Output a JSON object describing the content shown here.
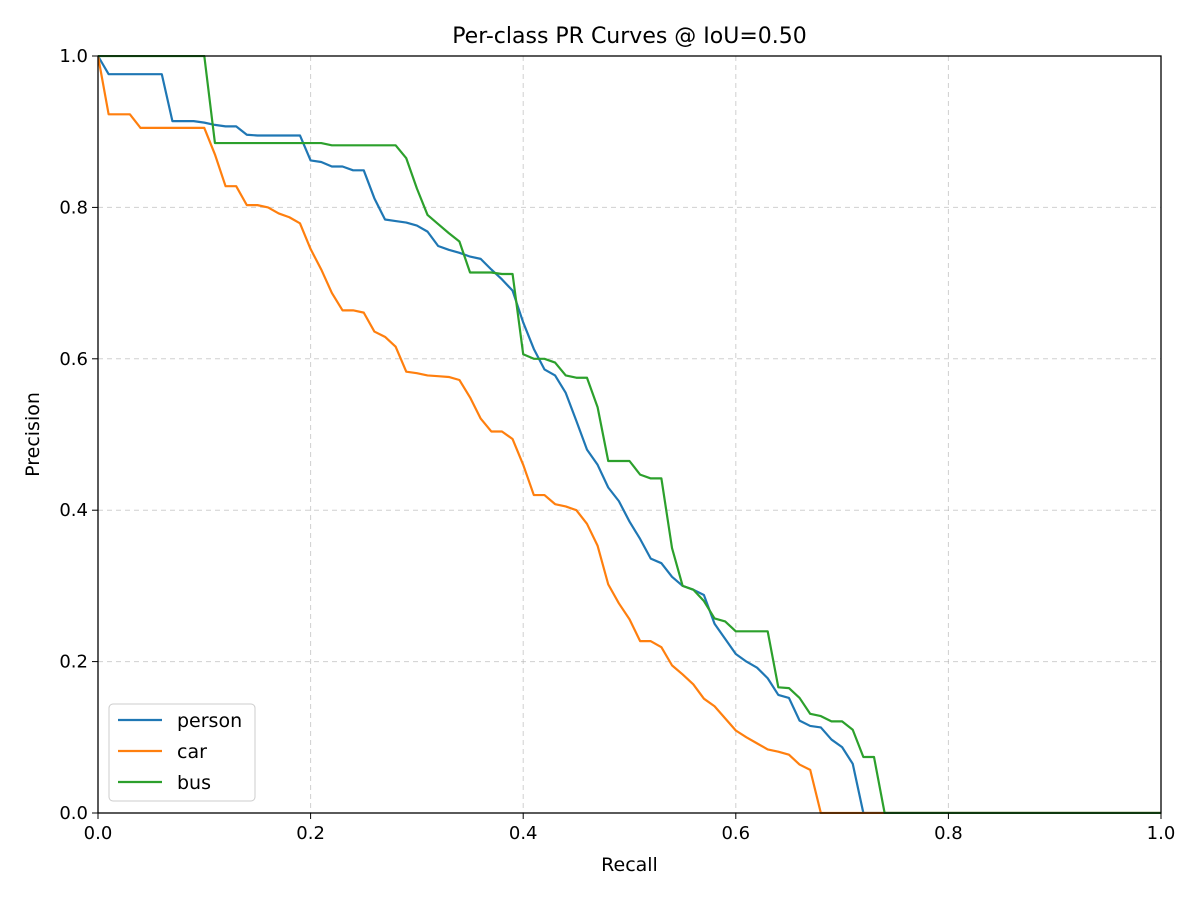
{
  "chart_data": {
    "type": "line",
    "title": "Per-class PR Curves @ IoU=0.50",
    "xlabel": "Recall",
    "ylabel": "Precision",
    "xlim": [
      0,
      1
    ],
    "ylim": [
      0,
      1
    ],
    "x_ticks": [
      0.0,
      0.2,
      0.4,
      0.6,
      0.8,
      1.0
    ],
    "y_ticks": [
      0.0,
      0.2,
      0.4,
      0.6,
      0.8,
      1.0
    ],
    "x_tick_labels": [
      "0.0",
      "0.2",
      "0.4",
      "0.6",
      "0.8",
      "1.0"
    ],
    "y_tick_labels": [
      "0.0",
      "0.2",
      "0.4",
      "0.6",
      "0.8",
      "1.0"
    ],
    "grid": true,
    "legend_position": "lower-left",
    "series": [
      {
        "name": "person",
        "color": "#1f77b4",
        "points": [
          [
            0,
            1.0
          ],
          [
            0.01,
            0.976
          ],
          [
            0.02,
            0.976
          ],
          [
            0.03,
            0.976
          ],
          [
            0.04,
            0.976
          ],
          [
            0.05,
            0.976
          ],
          [
            0.06,
            0.976
          ],
          [
            0.07,
            0.914
          ],
          [
            0.08,
            0.914
          ],
          [
            0.09,
            0.914
          ],
          [
            0.1,
            0.912
          ],
          [
            0.11,
            0.909
          ],
          [
            0.12,
            0.907
          ],
          [
            0.13,
            0.907
          ],
          [
            0.14,
            0.896
          ],
          [
            0.15,
            0.895
          ],
          [
            0.16,
            0.895
          ],
          [
            0.17,
            0.895
          ],
          [
            0.18,
            0.895
          ],
          [
            0.19,
            0.895
          ],
          [
            0.2,
            0.862
          ],
          [
            0.21,
            0.86
          ],
          [
            0.22,
            0.854
          ],
          [
            0.23,
            0.854
          ],
          [
            0.24,
            0.849
          ],
          [
            0.25,
            0.849
          ],
          [
            0.26,
            0.812
          ],
          [
            0.27,
            0.784
          ],
          [
            0.28,
            0.782
          ],
          [
            0.29,
            0.78
          ],
          [
            0.3,
            0.776
          ],
          [
            0.31,
            0.768
          ],
          [
            0.32,
            0.749
          ],
          [
            0.33,
            0.744
          ],
          [
            0.34,
            0.74
          ],
          [
            0.35,
            0.735
          ],
          [
            0.36,
            0.732
          ],
          [
            0.37,
            0.718
          ],
          [
            0.38,
            0.705
          ],
          [
            0.39,
            0.69
          ],
          [
            0.4,
            0.648
          ],
          [
            0.41,
            0.613
          ],
          [
            0.42,
            0.586
          ],
          [
            0.43,
            0.578
          ],
          [
            0.44,
            0.555
          ],
          [
            0.45,
            0.518
          ],
          [
            0.46,
            0.48
          ],
          [
            0.47,
            0.46
          ],
          [
            0.48,
            0.43
          ],
          [
            0.49,
            0.412
          ],
          [
            0.5,
            0.385
          ],
          [
            0.51,
            0.362
          ],
          [
            0.52,
            0.336
          ],
          [
            0.53,
            0.33
          ],
          [
            0.54,
            0.312
          ],
          [
            0.55,
            0.3
          ],
          [
            0.56,
            0.295
          ],
          [
            0.57,
            0.288
          ],
          [
            0.58,
            0.25
          ],
          [
            0.59,
            0.23
          ],
          [
            0.6,
            0.21
          ],
          [
            0.61,
            0.2
          ],
          [
            0.62,
            0.192
          ],
          [
            0.63,
            0.178
          ],
          [
            0.64,
            0.156
          ],
          [
            0.65,
            0.152
          ],
          [
            0.66,
            0.122
          ],
          [
            0.67,
            0.115
          ],
          [
            0.68,
            0.113
          ],
          [
            0.69,
            0.097
          ],
          [
            0.7,
            0.087
          ],
          [
            0.71,
            0.065
          ],
          [
            0.72,
            0.0
          ],
          [
            1.0,
            0.0
          ]
        ]
      },
      {
        "name": "car",
        "color": "#ff7f0e",
        "points": [
          [
            0,
            1.0
          ],
          [
            0.01,
            0.923
          ],
          [
            0.02,
            0.923
          ],
          [
            0.03,
            0.923
          ],
          [
            0.04,
            0.905
          ],
          [
            0.05,
            0.905
          ],
          [
            0.06,
            0.905
          ],
          [
            0.07,
            0.905
          ],
          [
            0.08,
            0.905
          ],
          [
            0.09,
            0.905
          ],
          [
            0.1,
            0.905
          ],
          [
            0.11,
            0.87
          ],
          [
            0.12,
            0.828
          ],
          [
            0.13,
            0.828
          ],
          [
            0.14,
            0.803
          ],
          [
            0.15,
            0.803
          ],
          [
            0.16,
            0.8
          ],
          [
            0.17,
            0.792
          ],
          [
            0.18,
            0.787
          ],
          [
            0.19,
            0.779
          ],
          [
            0.2,
            0.745
          ],
          [
            0.21,
            0.718
          ],
          [
            0.22,
            0.687
          ],
          [
            0.23,
            0.664
          ],
          [
            0.24,
            0.664
          ],
          [
            0.25,
            0.661
          ],
          [
            0.26,
            0.636
          ],
          [
            0.27,
            0.629
          ],
          [
            0.28,
            0.616
          ],
          [
            0.29,
            0.583
          ],
          [
            0.3,
            0.581
          ],
          [
            0.31,
            0.578
          ],
          [
            0.32,
            0.577
          ],
          [
            0.33,
            0.576
          ],
          [
            0.34,
            0.572
          ],
          [
            0.35,
            0.549
          ],
          [
            0.36,
            0.521
          ],
          [
            0.37,
            0.504
          ],
          [
            0.38,
            0.504
          ],
          [
            0.39,
            0.494
          ],
          [
            0.4,
            0.46
          ],
          [
            0.41,
            0.42
          ],
          [
            0.42,
            0.42
          ],
          [
            0.43,
            0.408
          ],
          [
            0.44,
            0.405
          ],
          [
            0.45,
            0.4
          ],
          [
            0.46,
            0.382
          ],
          [
            0.47,
            0.353
          ],
          [
            0.48,
            0.302
          ],
          [
            0.49,
            0.277
          ],
          [
            0.5,
            0.256
          ],
          [
            0.51,
            0.227
          ],
          [
            0.52,
            0.227
          ],
          [
            0.53,
            0.219
          ],
          [
            0.54,
            0.195
          ],
          [
            0.55,
            0.183
          ],
          [
            0.56,
            0.17
          ],
          [
            0.57,
            0.151
          ],
          [
            0.58,
            0.141
          ],
          [
            0.59,
            0.125
          ],
          [
            0.6,
            0.109
          ],
          [
            0.61,
            0.1
          ],
          [
            0.62,
            0.092
          ],
          [
            0.63,
            0.084
          ],
          [
            0.64,
            0.081
          ],
          [
            0.65,
            0.077
          ],
          [
            0.66,
            0.064
          ],
          [
            0.67,
            0.057
          ],
          [
            0.68,
            0.0
          ],
          [
            1.0,
            0.0
          ]
        ]
      },
      {
        "name": "bus",
        "color": "#2ca02c",
        "points": [
          [
            0,
            1.0
          ],
          [
            0.01,
            1.0
          ],
          [
            0.02,
            1.0
          ],
          [
            0.03,
            1.0
          ],
          [
            0.04,
            1.0
          ],
          [
            0.05,
            1.0
          ],
          [
            0.06,
            1.0
          ],
          [
            0.07,
            1.0
          ],
          [
            0.08,
            1.0
          ],
          [
            0.09,
            1.0
          ],
          [
            0.1,
            1.0
          ],
          [
            0.11,
            0.885
          ],
          [
            0.12,
            0.885
          ],
          [
            0.13,
            0.885
          ],
          [
            0.14,
            0.885
          ],
          [
            0.15,
            0.885
          ],
          [
            0.16,
            0.885
          ],
          [
            0.17,
            0.885
          ],
          [
            0.18,
            0.885
          ],
          [
            0.19,
            0.885
          ],
          [
            0.2,
            0.885
          ],
          [
            0.21,
            0.885
          ],
          [
            0.22,
            0.882
          ],
          [
            0.23,
            0.882
          ],
          [
            0.24,
            0.882
          ],
          [
            0.25,
            0.882
          ],
          [
            0.26,
            0.882
          ],
          [
            0.27,
            0.882
          ],
          [
            0.28,
            0.882
          ],
          [
            0.29,
            0.865
          ],
          [
            0.3,
            0.825
          ],
          [
            0.31,
            0.79
          ],
          [
            0.32,
            0.778
          ],
          [
            0.33,
            0.766
          ],
          [
            0.34,
            0.755
          ],
          [
            0.35,
            0.714
          ],
          [
            0.36,
            0.714
          ],
          [
            0.37,
            0.714
          ],
          [
            0.38,
            0.712
          ],
          [
            0.39,
            0.712
          ],
          [
            0.4,
            0.606
          ],
          [
            0.41,
            0.6
          ],
          [
            0.42,
            0.6
          ],
          [
            0.43,
            0.595
          ],
          [
            0.44,
            0.578
          ],
          [
            0.45,
            0.575
          ],
          [
            0.46,
            0.575
          ],
          [
            0.47,
            0.536
          ],
          [
            0.48,
            0.465
          ],
          [
            0.49,
            0.465
          ],
          [
            0.5,
            0.465
          ],
          [
            0.51,
            0.447
          ],
          [
            0.52,
            0.442
          ],
          [
            0.53,
            0.442
          ],
          [
            0.54,
            0.35
          ],
          [
            0.55,
            0.3
          ],
          [
            0.56,
            0.295
          ],
          [
            0.57,
            0.28
          ],
          [
            0.58,
            0.257
          ],
          [
            0.59,
            0.253
          ],
          [
            0.6,
            0.24
          ],
          [
            0.61,
            0.24
          ],
          [
            0.62,
            0.24
          ],
          [
            0.63,
            0.24
          ],
          [
            0.64,
            0.166
          ],
          [
            0.65,
            0.165
          ],
          [
            0.66,
            0.152
          ],
          [
            0.67,
            0.131
          ],
          [
            0.68,
            0.128
          ],
          [
            0.69,
            0.121
          ],
          [
            0.7,
            0.121
          ],
          [
            0.71,
            0.11
          ],
          [
            0.72,
            0.074
          ],
          [
            0.73,
            0.074
          ],
          [
            0.74,
            0.0
          ],
          [
            1.0,
            0.0
          ]
        ]
      }
    ]
  }
}
